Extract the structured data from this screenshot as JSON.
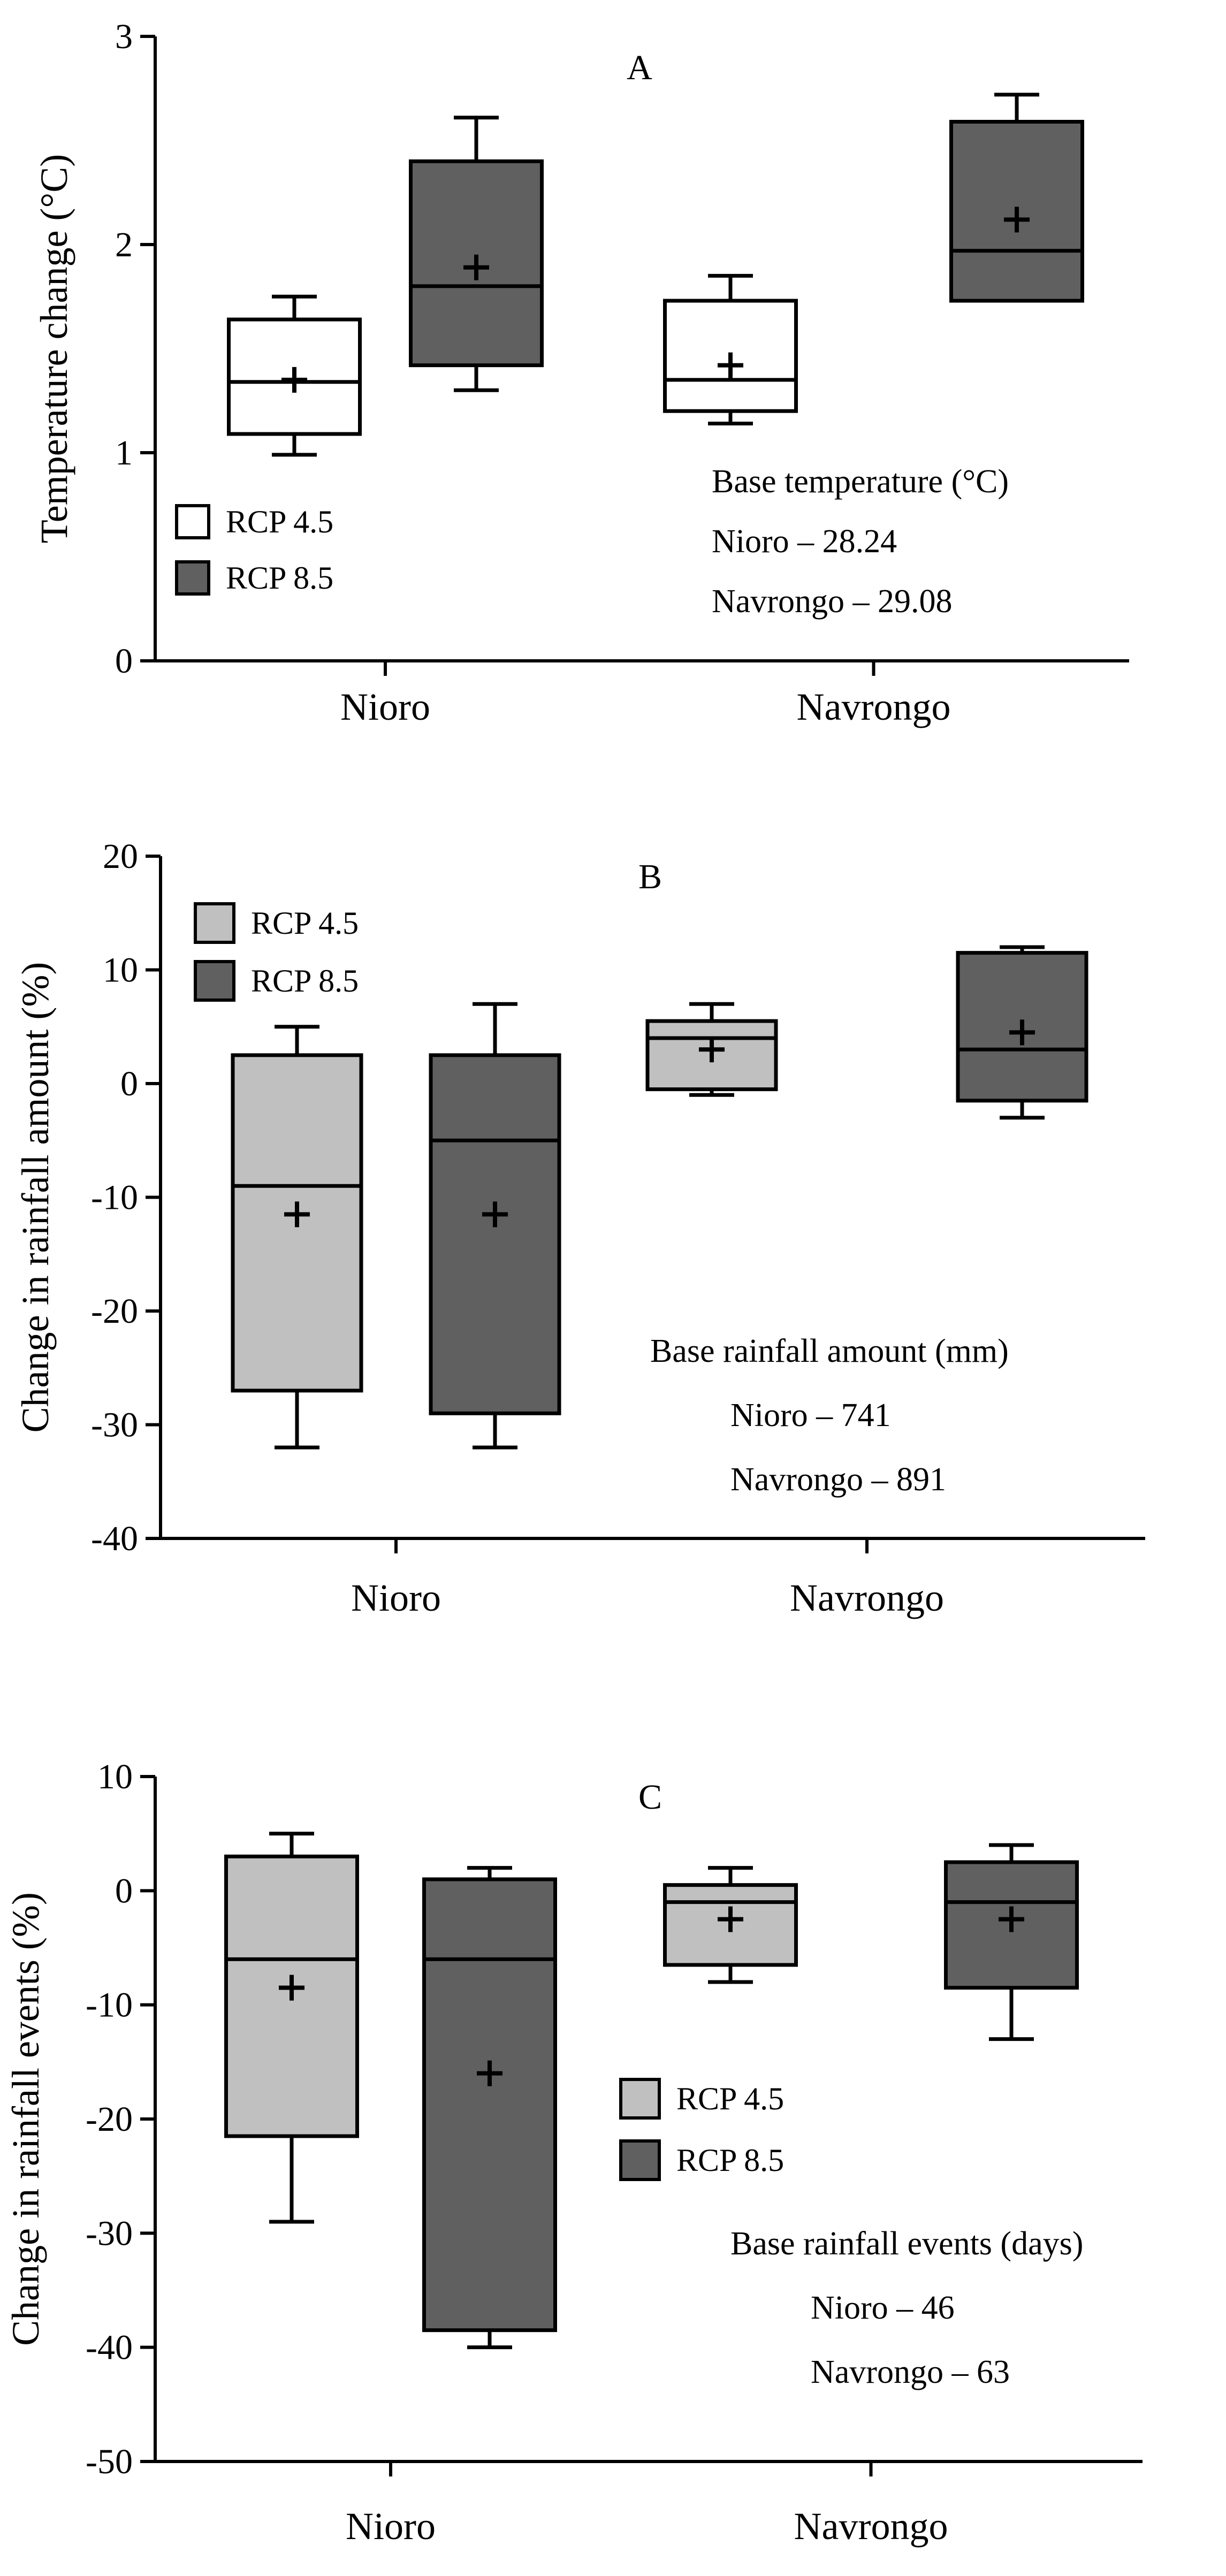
{
  "chart_data": [
    {
      "panel": "A",
      "type": "box",
      "title": "A",
      "ylabel": "Temperature change (°C)",
      "ylim": [
        0,
        3
      ],
      "yticks": [
        0,
        1,
        2,
        3
      ],
      "categories": [
        "Nioro",
        "Navrongo"
      ],
      "legend_position": "bottom-left",
      "series": [
        {
          "name": "RCP 4.5",
          "color": "#ffffff",
          "boxes": [
            {
              "min": 0.99,
              "q1": 1.09,
              "median": 1.34,
              "q3": 1.64,
              "max": 1.75,
              "mean": 1.35
            },
            {
              "min": 1.14,
              "q1": 1.2,
              "median": 1.35,
              "q3": 1.73,
              "max": 1.85,
              "mean": 1.42
            }
          ]
        },
        {
          "name": "RCP 8.5",
          "color": "#606060",
          "boxes": [
            {
              "min": 1.3,
              "q1": 1.42,
              "median": 1.8,
              "q3": 2.4,
              "max": 2.61,
              "mean": 1.89
            },
            {
              "min": 1.73,
              "q1": 1.73,
              "median": 1.97,
              "q3": 2.59,
              "max": 2.72,
              "mean": 2.12
            }
          ]
        }
      ],
      "annotation": {
        "heading": "Base temperature (°C)",
        "lines": [
          "Nioro – 28.24",
          "Navrongo – 29.08"
        ]
      }
    },
    {
      "panel": "B",
      "type": "box",
      "title": "B",
      "ylabel": "Change in rainfall amount (%)",
      "ylim": [
        -40,
        20
      ],
      "yticks": [
        -40,
        -30,
        -20,
        -10,
        0,
        10,
        20
      ],
      "categories": [
        "Nioro",
        "Navrongo"
      ],
      "legend_position": "top-left",
      "series": [
        {
          "name": "RCP 4.5",
          "color": "#c0c0c0",
          "boxes": [
            {
              "min": -32,
              "q1": -27,
              "median": -9,
              "q3": 2.5,
              "max": 5,
              "mean": -11.5
            },
            {
              "min": -1,
              "q1": -0.5,
              "median": 4,
              "q3": 5.5,
              "max": 7,
              "mean": 3
            }
          ]
        },
        {
          "name": "RCP 8.5",
          "color": "#606060",
          "boxes": [
            {
              "min": -32,
              "q1": -29,
              "median": -5,
              "q3": 2.5,
              "max": 7,
              "mean": -11.5
            },
            {
              "min": -3,
              "q1": -1.5,
              "median": 3,
              "q3": 11.5,
              "max": 12,
              "mean": 4.5
            }
          ]
        }
      ],
      "annotation": {
        "heading": "Base rainfall amount (mm)",
        "lines": [
          "Nioro – 741",
          "Navrongo – 891"
        ]
      }
    },
    {
      "panel": "C",
      "type": "box",
      "title": "C",
      "ylabel": "Change in rainfall events (%)",
      "ylim": [
        -50,
        10
      ],
      "yticks": [
        -50,
        -40,
        -30,
        -20,
        -10,
        0,
        10
      ],
      "categories": [
        "Nioro",
        "Navrongo"
      ],
      "legend_position": "middle-center",
      "series": [
        {
          "name": "RCP 4.5",
          "color": "#c0c0c0",
          "boxes": [
            {
              "min": -29,
              "q1": -21.5,
              "median": -6,
              "q3": 3,
              "max": 5,
              "mean": -8.5
            },
            {
              "min": -8,
              "q1": -6.5,
              "median": -1,
              "q3": 0.5,
              "max": 2,
              "mean": -2.5
            }
          ]
        },
        {
          "name": "RCP 8.5",
          "color": "#606060",
          "boxes": [
            {
              "min": -40,
              "q1": -38.5,
              "median": -6,
              "q3": 1,
              "max": 2,
              "mean": -16
            },
            {
              "min": -13,
              "q1": -8.5,
              "median": -1,
              "q3": 2.5,
              "max": 4,
              "mean": -2.5
            }
          ]
        }
      ],
      "annotation": {
        "heading": "Base rainfall events (days)",
        "lines": [
          "Nioro – 46",
          "Navrongo – 63"
        ]
      }
    }
  ]
}
